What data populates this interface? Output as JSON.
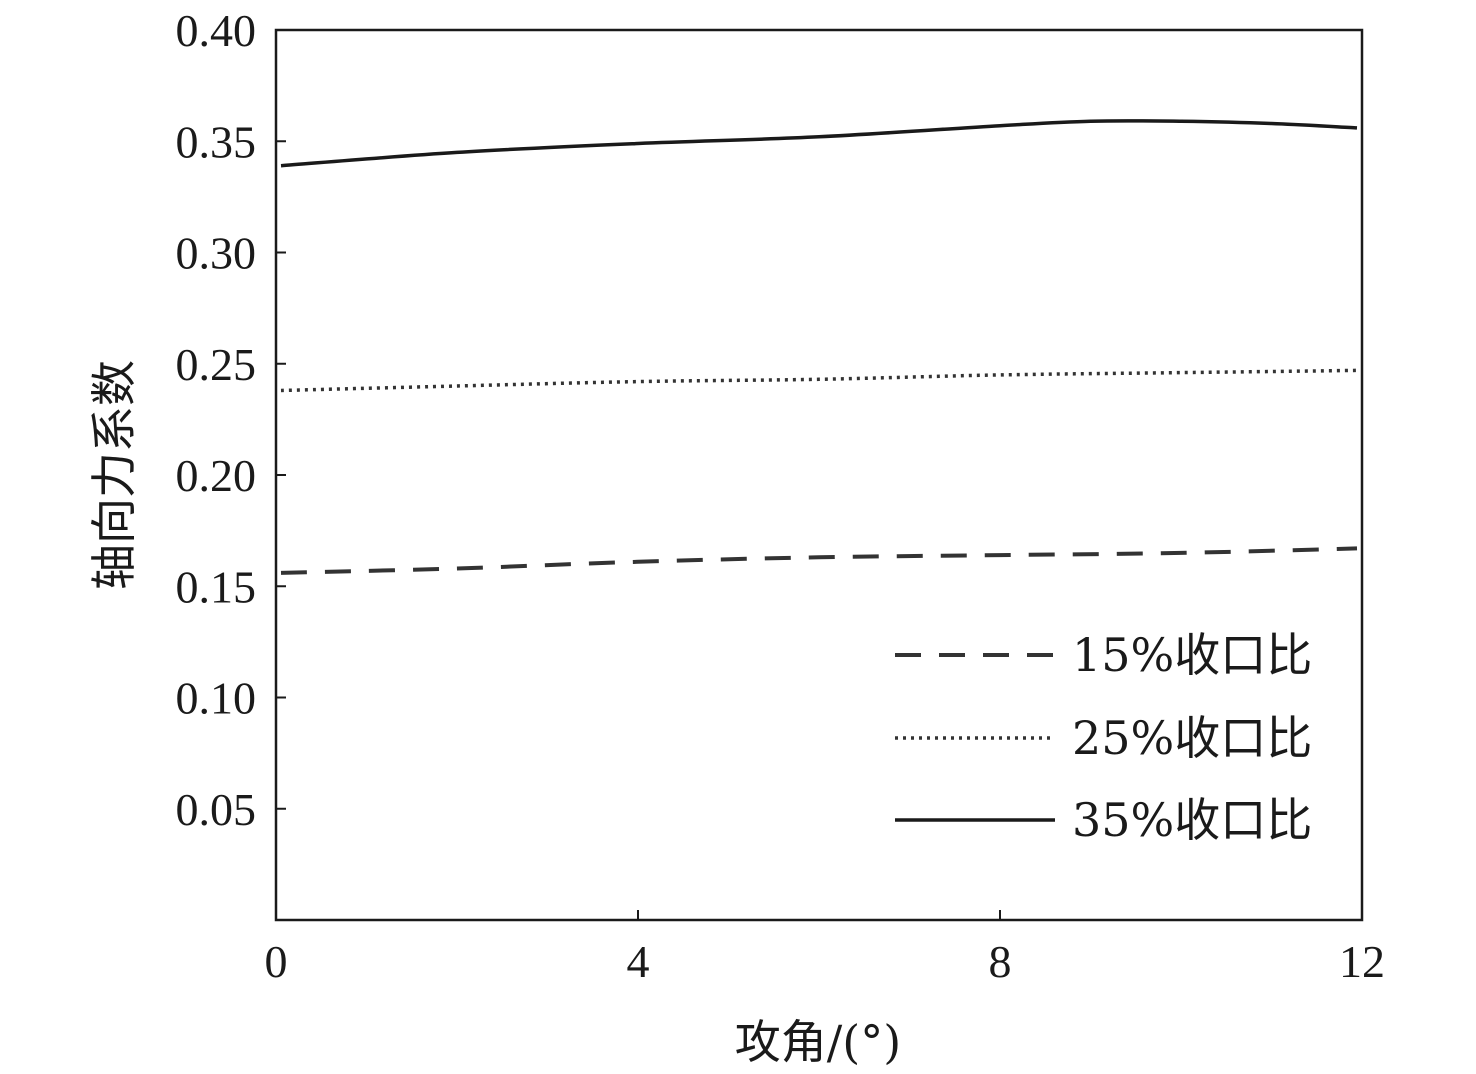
{
  "chart_data": {
    "type": "line",
    "xlabel": "攻角/(°)",
    "ylabel": "轴向力系数",
    "xlim": [
      0,
      12
    ],
    "ylim": [
      0,
      0.4
    ],
    "x_ticks": [
      0,
      4,
      8,
      12
    ],
    "x_tick_labels": [
      "0",
      "4",
      "8",
      "12"
    ],
    "y_ticks": [
      0.05,
      0.1,
      0.15,
      0.2,
      0.25,
      0.3,
      0.35,
      0.4
    ],
    "y_tick_labels": [
      "0.05",
      "0.10",
      "0.15",
      "0.20",
      "0.25",
      "0.30",
      "0.35",
      "0.40"
    ],
    "grid": false,
    "legend_position": "bottom-right",
    "series": [
      {
        "name": "15%收口比",
        "line_style": "dashed",
        "color": "#333333",
        "x": [
          0,
          2,
          4,
          6,
          8,
          10,
          12
        ],
        "y": [
          0.156,
          0.158,
          0.161,
          0.163,
          0.164,
          0.165,
          0.167
        ]
      },
      {
        "name": "25%收口比",
        "line_style": "dotted",
        "color": "#333333",
        "x": [
          0,
          2,
          4,
          6,
          8,
          10,
          12
        ],
        "y": [
          0.238,
          0.24,
          0.242,
          0.243,
          0.245,
          0.246,
          0.247
        ]
      },
      {
        "name": "35%收口比",
        "line_style": "solid",
        "color": "#1a1a1a",
        "x": [
          0,
          2,
          4,
          6,
          8,
          9,
          10,
          11,
          12
        ],
        "y": [
          0.339,
          0.345,
          0.349,
          0.352,
          0.357,
          0.359,
          0.359,
          0.358,
          0.356
        ]
      }
    ]
  }
}
